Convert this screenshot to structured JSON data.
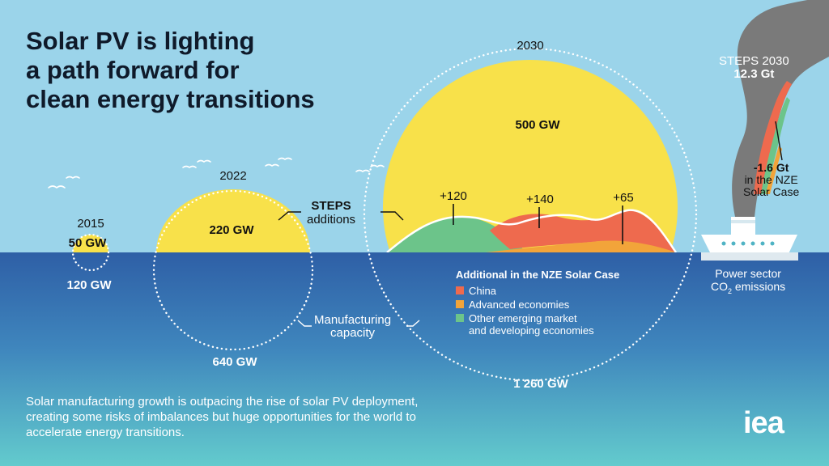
{
  "title_lines": [
    "Solar PV is lighting",
    "a path forward for",
    "clean energy transitions"
  ],
  "colors": {
    "sky": "#9bd4ea",
    "sea_top": "#2f62a8",
    "sea_bottom": "#5ec6cc",
    "sun": "#f8e14a",
    "china": "#ee6a4e",
    "advanced": "#f2a43a",
    "other_emerging": "#6cc48a",
    "smoke": "#7a7a7a",
    "white": "#ffffff"
  },
  "years": {
    "y2015": "2015",
    "y2022": "2022",
    "y2030": "2030"
  },
  "deployment": {
    "v2015": "50 GW",
    "v2022": "220 GW",
    "v2030": "500 GW"
  },
  "manufacturing": {
    "v2015": "120 GW",
    "v2022": "640 GW",
    "v2030": "1 260 GW"
  },
  "labels": {
    "steps_title": "STEPS",
    "steps_sub": "additions",
    "mfg_line1": "Manufacturing",
    "mfg_line2": "capacity"
  },
  "additions": {
    "other": "+120",
    "china": "+140",
    "advanced": "+65"
  },
  "legend": {
    "title": "Additional in the NZE Solar Case",
    "items": [
      {
        "label": "China",
        "color": "#ee6a4e"
      },
      {
        "label": "Advanced economies",
        "color": "#f2a43a"
      },
      {
        "label": "Other emerging market\nand developing economies",
        "color": "#6cc48a"
      }
    ]
  },
  "emissions": {
    "steps_line1": "STEPS 2030",
    "steps_line2": "12.3 Gt",
    "reduction_line1": "-1.6 Gt",
    "reduction_line2": "in the NZE",
    "reduction_line3": "Solar Case",
    "sector_line1": "Power sector",
    "sector_line2_pre": "CO",
    "sector_line2_sub": "2",
    "sector_line2_post": " emissions"
  },
  "footer": "Solar manufacturing growth is outpacing the rise of solar PV deployment, creating some risks of imbalances but huge opportunities for the world to accelerate energy transitions.",
  "logo": "iea"
}
